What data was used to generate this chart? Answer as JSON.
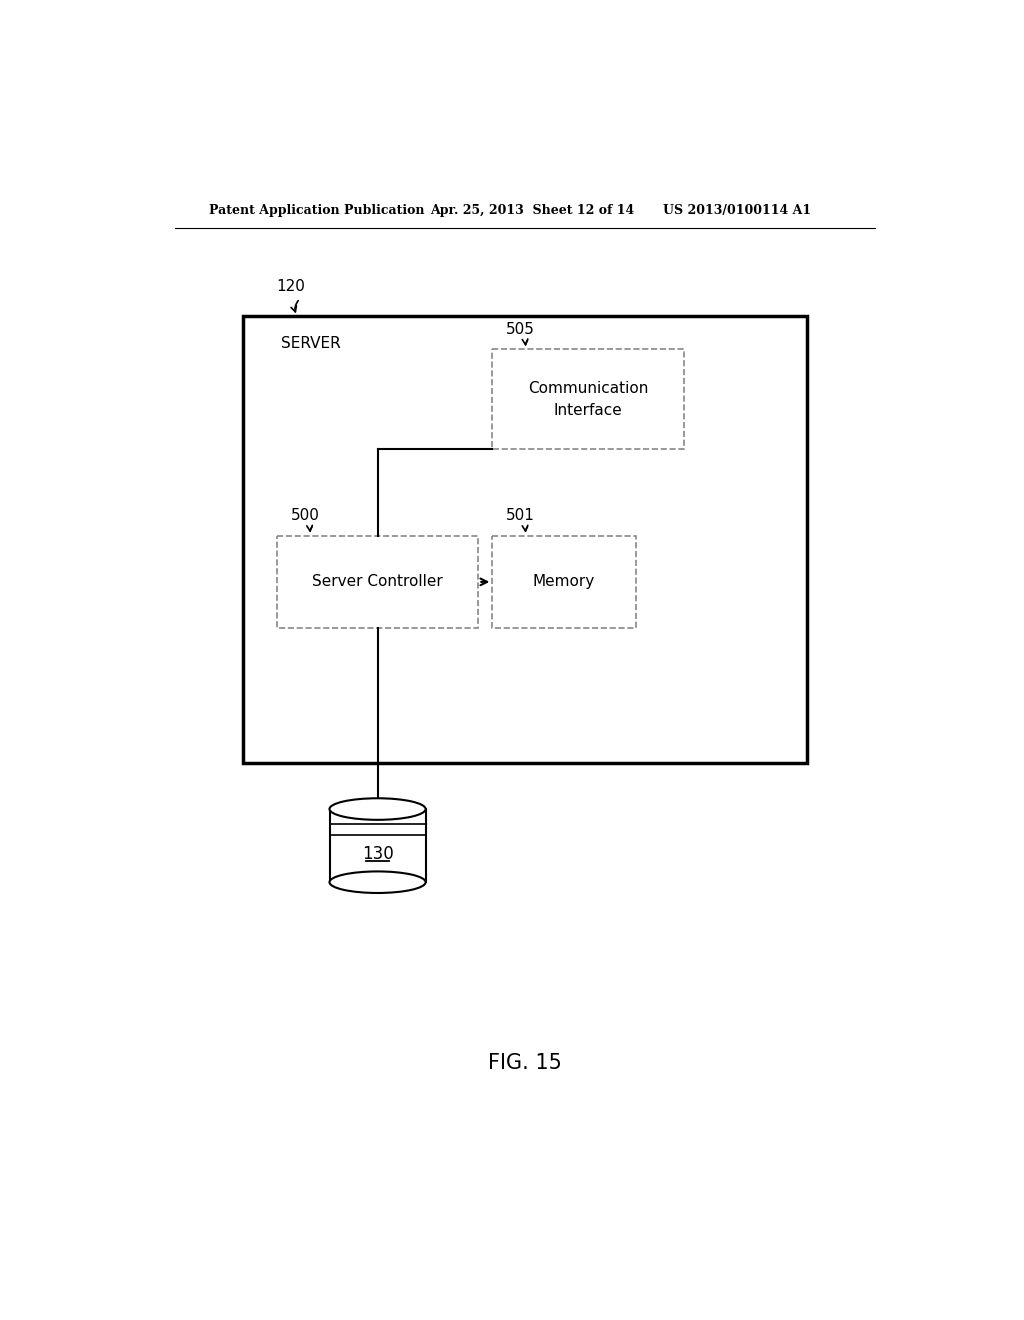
{
  "header_left": "Patent Application Publication",
  "header_mid": "Apr. 25, 2013  Sheet 12 of 14",
  "header_right": "US 2013/0100114 A1",
  "fig_label": "FIG. 15",
  "server_label": "SERVER",
  "server_ref": "120",
  "comm_label": "Communication\nInterface",
  "comm_ref": "505",
  "ctrl_label": "Server Controller",
  "ctrl_ref": "500",
  "mem_label": "Memory",
  "mem_ref": "501",
  "db_ref": "130",
  "bg_color": "#ffffff",
  "line_color": "#000000",
  "box_line_color": "#888888"
}
